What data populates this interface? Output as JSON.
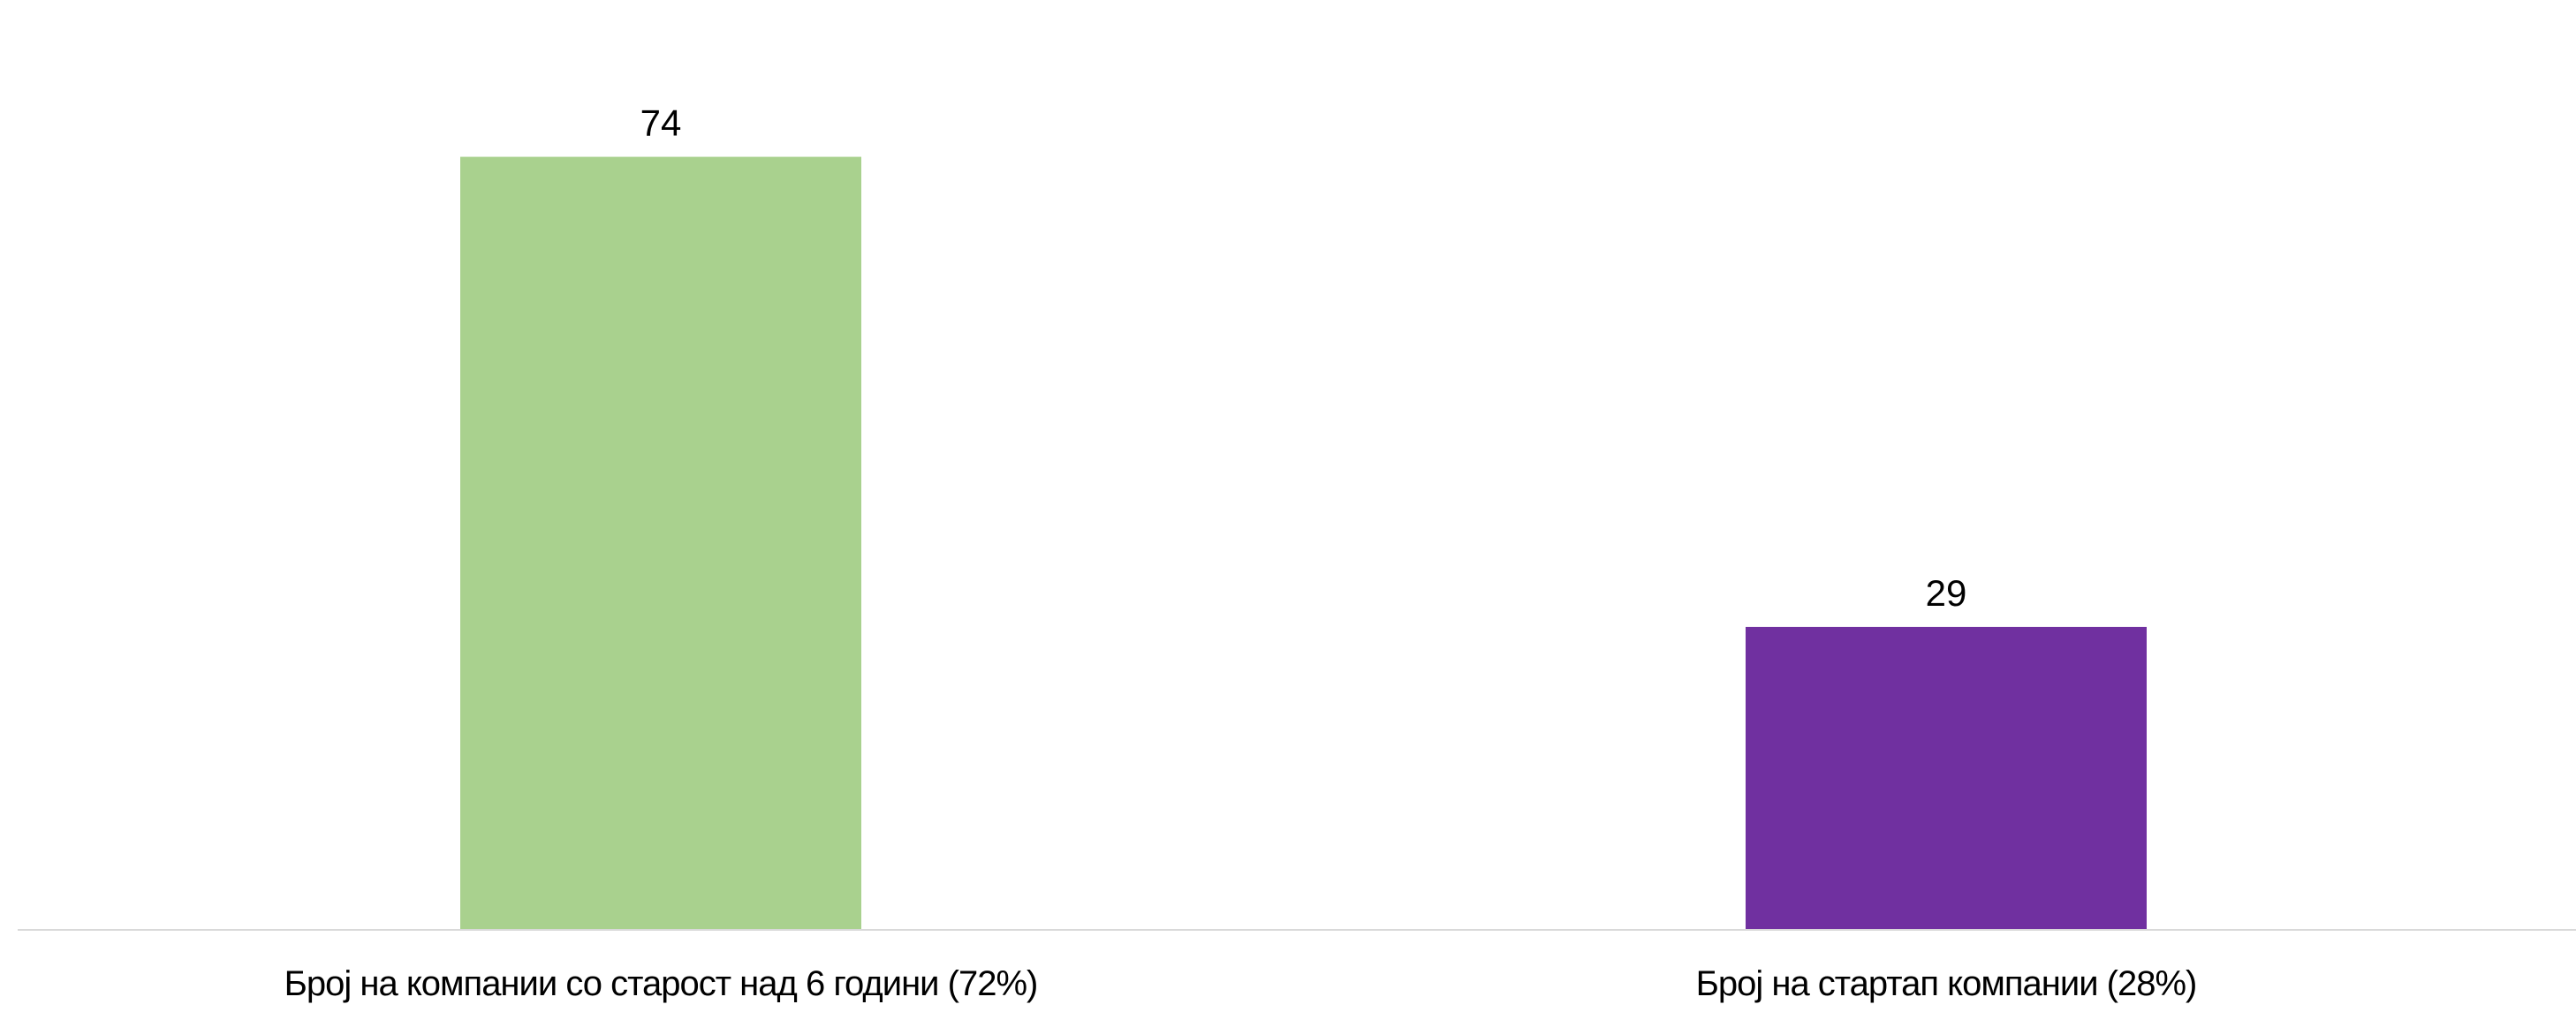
{
  "chart_data": {
    "type": "bar",
    "categories": [
      "Број на компании со старост над 6 години (72%)",
      "Број на стартап компании  (28%)"
    ],
    "values": [
      74,
      29
    ],
    "colors": [
      "#a9d18e",
      "#7030a0"
    ],
    "axis_color": "#d9d9d9",
    "ylim": [
      0,
      80
    ],
    "grid": false,
    "legend": "none"
  }
}
